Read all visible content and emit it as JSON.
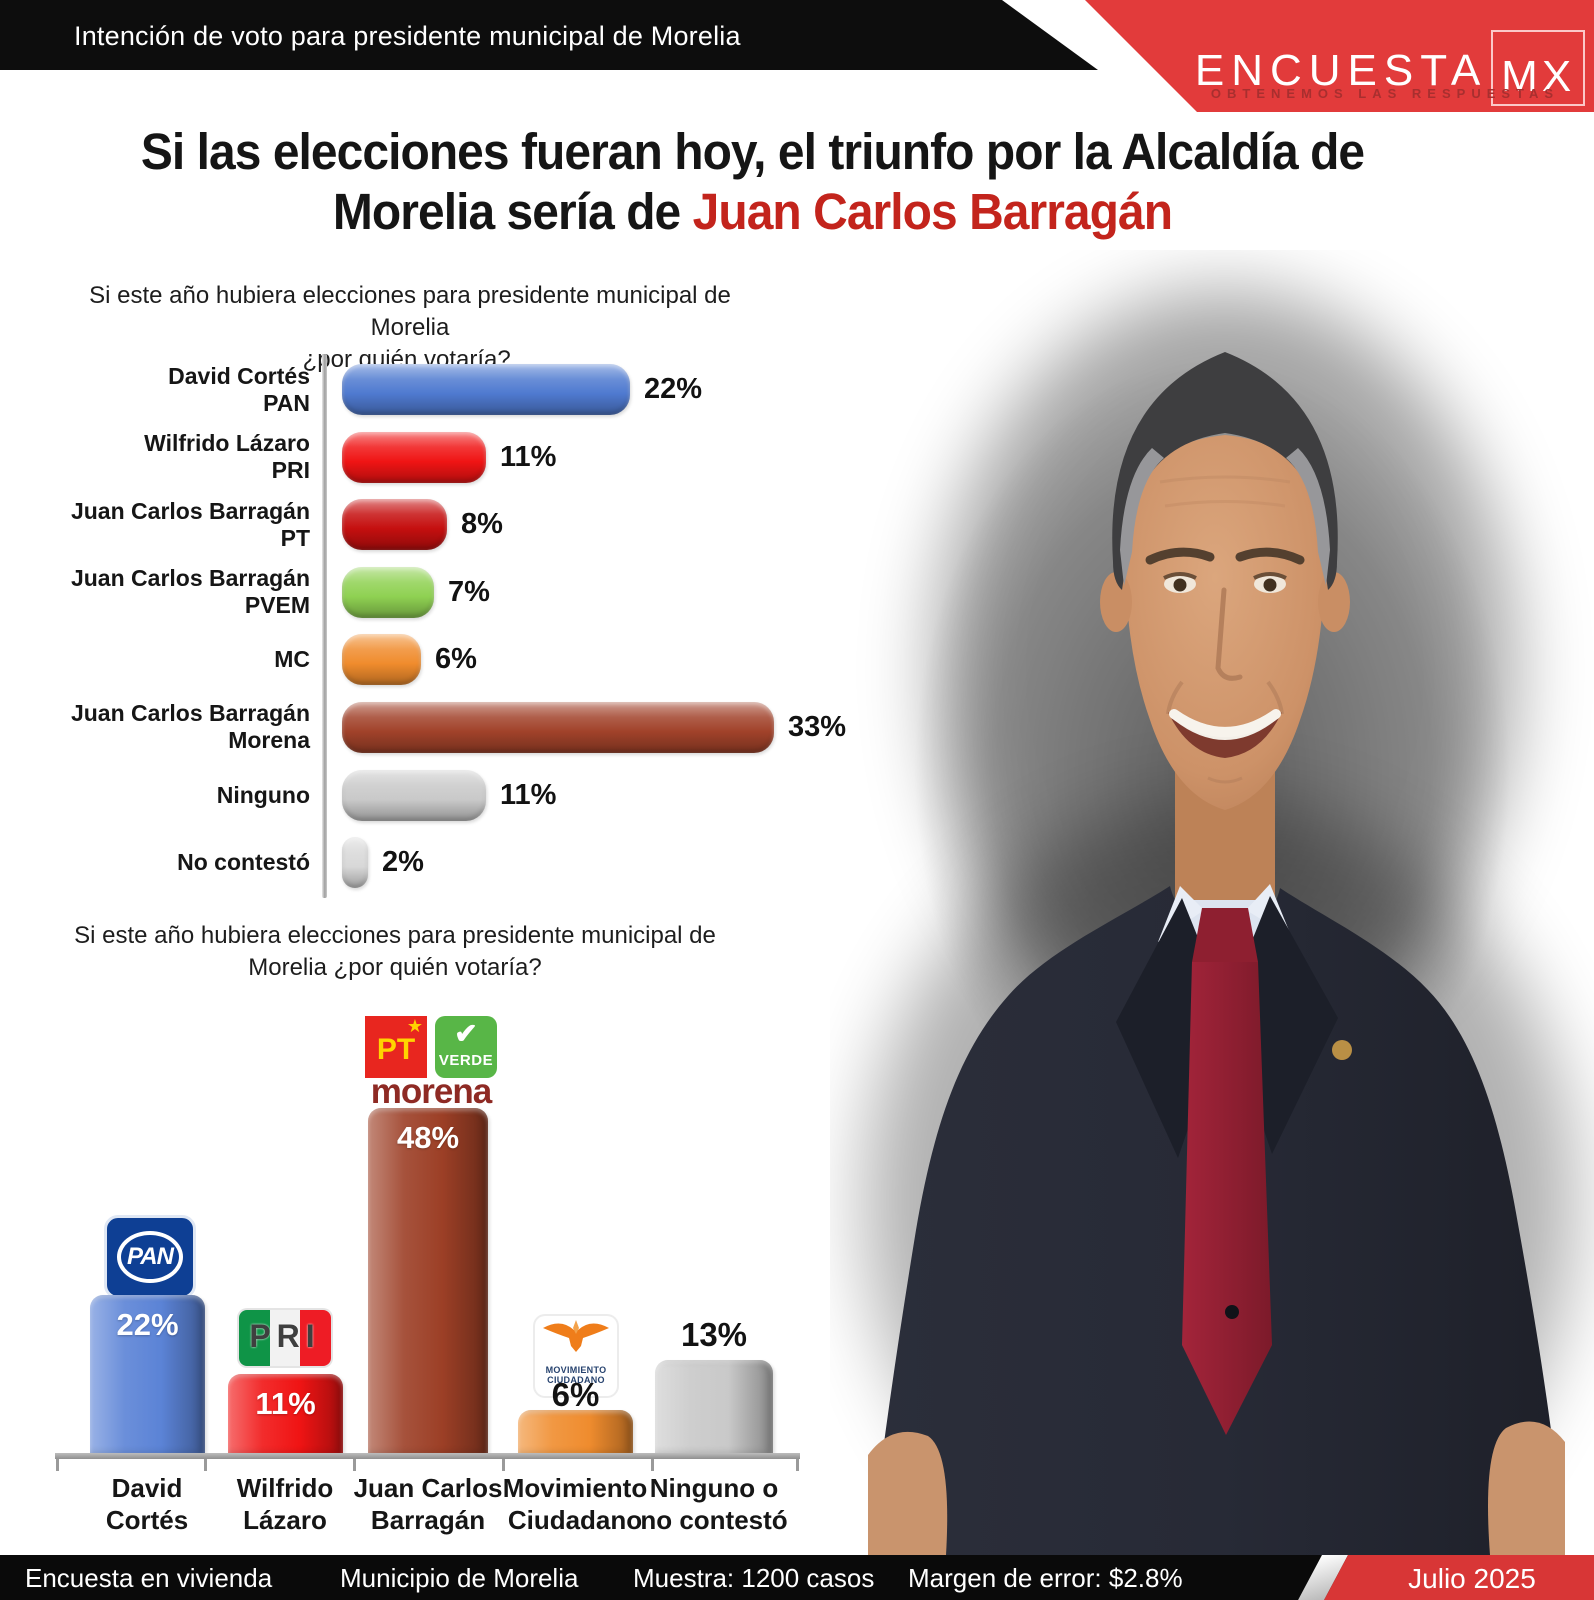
{
  "header": {
    "bar_title": "Intención de voto para presidente municipal de Morelia",
    "logo": {
      "brand_main": "Encuesta",
      "brand_suffix": "MX",
      "tagline": "OBTENEMOS LAS RESPUESTAS",
      "banner_color": "#e23b3b"
    }
  },
  "headline": {
    "line1": "Si las elecciones fueran hoy, el triunfo por la Alcaldía de",
    "line2_prefix": "Morelia sería de ",
    "line2_highlight": "Juan Carlos Barragán",
    "highlight_color": "#c3241c"
  },
  "chart_data": [
    {
      "type": "bar",
      "orientation": "horizontal",
      "title": "Si este año hubiera elecciones para presidente municipal de Morelia ¿por quién votaría?.",
      "title_lines": [
        "Si este año hubiera elecciones para presidente municipal de Morelia",
        "¿por quién votaría?."
      ],
      "categories": [
        "David Cortés PAN",
        "Wilfrido Lázaro PRI",
        "Juan Carlos Barragán PT",
        "Juan Carlos Barragán PVEM",
        "MC",
        "Juan Carlos Barragán Morena",
        "Ninguno",
        "No contestó"
      ],
      "categories_lines": [
        [
          "David Cortés",
          "PAN"
        ],
        [
          "Wilfrido Lázaro",
          "PRI"
        ],
        [
          "Juan Carlos Barragán",
          "PT"
        ],
        [
          "Juan Carlos Barragán",
          "PVEM"
        ],
        [
          "MC",
          ""
        ],
        [
          "Juan Carlos Barragán",
          "Morena"
        ],
        [
          "Ninguno",
          ""
        ],
        [
          "No contestó",
          ""
        ]
      ],
      "values": [
        22,
        11,
        8,
        7,
        6,
        33,
        11,
        2
      ],
      "value_labels": [
        "22%",
        "11%",
        "8%",
        "7%",
        "6%",
        "33%",
        "11%",
        "2%"
      ],
      "bar_colors": [
        "#4f7ad0",
        "#f01414",
        "#c50f0f",
        "#8fd152",
        "#f08c2d",
        "#a1422a",
        "#c9c9c9",
        "#d8d8d8"
      ],
      "xlim": [
        0,
        35
      ],
      "grid": false,
      "legend": null
    },
    {
      "type": "bar",
      "orientation": "vertical",
      "title": "Si este año hubiera elecciones para presidente municipal de Morelia ¿por quién votaría?",
      "title_lines": [
        "Si este año hubiera elecciones para presidente municipal de",
        "Morelia ¿por quién votaría?"
      ],
      "categories": [
        "David Cortés",
        "Wilfrido Lázaro",
        "Juan Carlos Barragán",
        "Movimiento Ciudadano",
        "Ninguno o no contestó"
      ],
      "categories_lines": [
        [
          "David",
          "Cortés"
        ],
        [
          "Wilfrido",
          "Lázaro"
        ],
        [
          "Juan Carlos",
          "Barragán"
        ],
        [
          "Movimiento",
          "Ciudadano"
        ],
        [
          "Ninguno o",
          "no contestó"
        ]
      ],
      "values": [
        22,
        11,
        48,
        6,
        13
      ],
      "value_labels": [
        "22%",
        "11%",
        "48%",
        "6%",
        "13%"
      ],
      "bar_colors": [
        "#5b83d6",
        "#f01414",
        "#9c3f26",
        "#ef8c2e",
        "#c9c9c9"
      ],
      "bar_logos": [
        "PAN",
        "PRI",
        "PT + VERDE + morena",
        "Movimiento Ciudadano",
        ""
      ],
      "ylim": [
        0,
        50
      ],
      "grid": false,
      "legend": null
    }
  ],
  "party_logos": {
    "pan": "PAN",
    "pri": "PRI",
    "pt": "PT",
    "verde": "VERDE",
    "morena": "morena",
    "mc_line1": "MOVIMIENTO",
    "mc_line2": "CIUDADANO"
  },
  "icons": {
    "pt_star": "★",
    "verde_bird": "✔"
  },
  "footer": {
    "items": [
      "Encuesta en vivienda",
      "Municipio de Morelia",
      "Muestra: 1200 casos",
      "Margen de error: $2.8%"
    ],
    "date": "Julio 2025"
  }
}
